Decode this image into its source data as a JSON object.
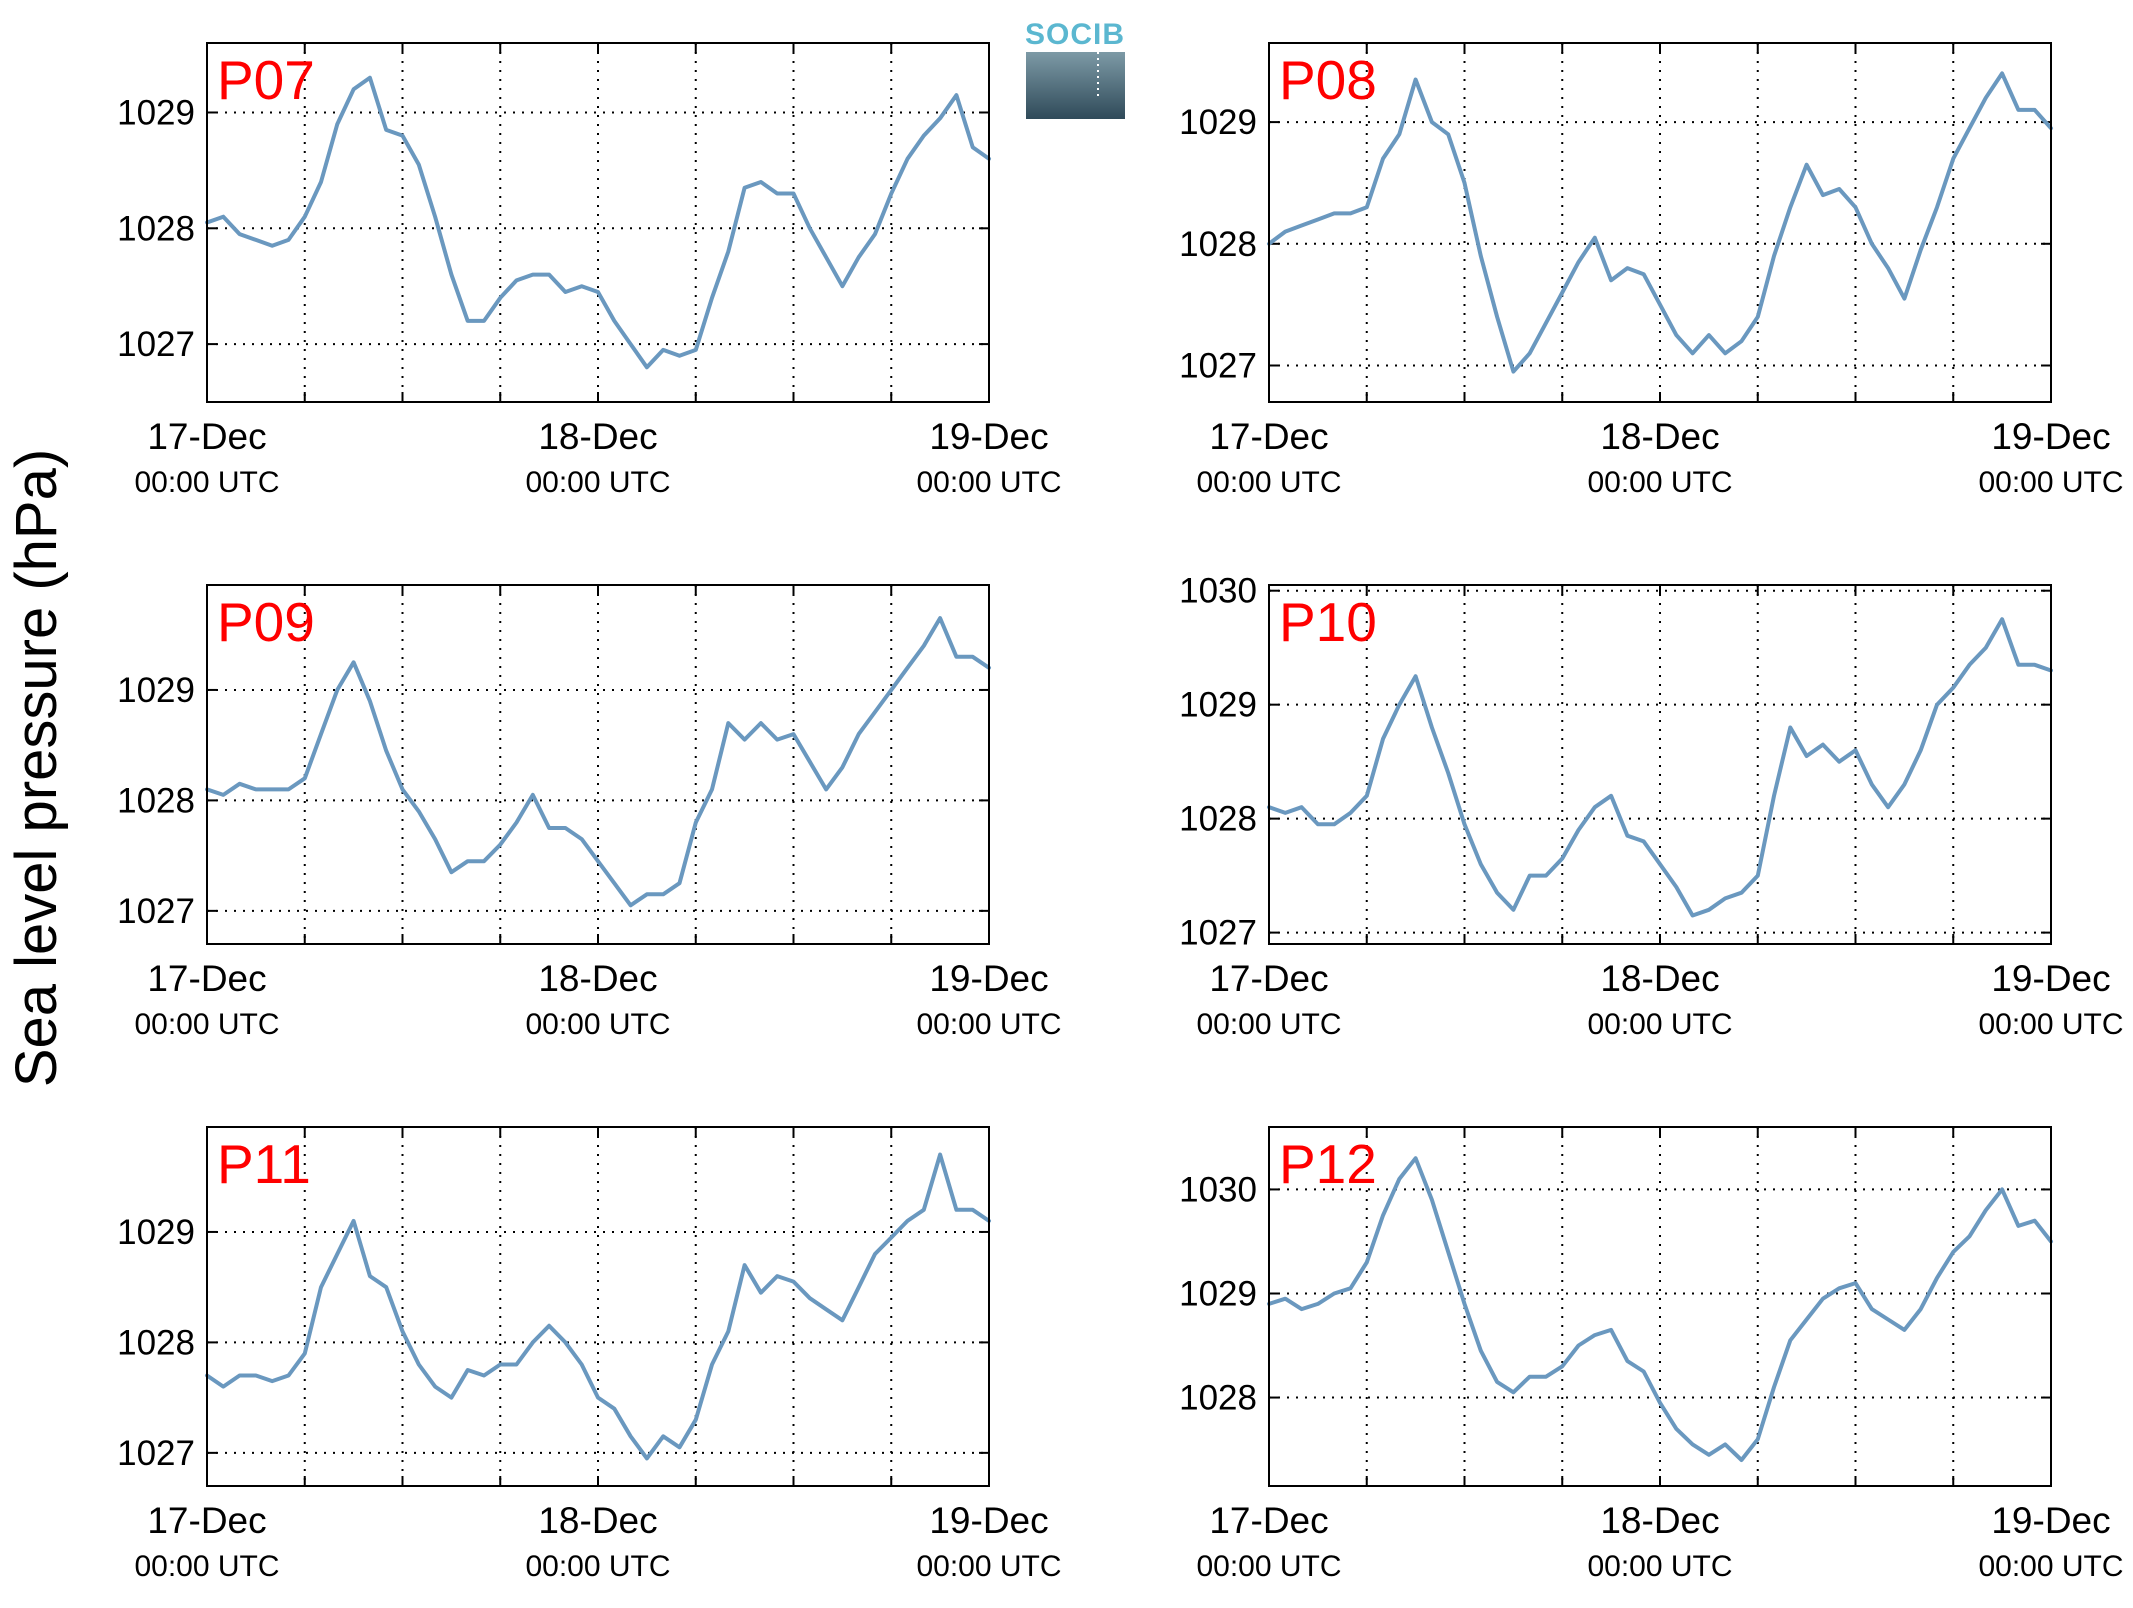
{
  "colors": {
    "series_line": "#6a98bf",
    "panel_title": "#ff0000",
    "logo_text": "#5bb7d0",
    "logo_gradient_top": "#7d9aa6",
    "logo_gradient_bottom": "#2f4a59"
  },
  "logo": {
    "text": "SOCIB"
  },
  "figure": {
    "ylabel": "Sea level pressure (hPa)"
  },
  "chart_data": [
    {
      "type": "line",
      "title": "P07",
      "ylim": [
        1026.5,
        1029.6
      ],
      "yticks": [
        1027,
        1028,
        1029
      ],
      "ytick_labels": [
        "1027",
        "1028",
        "1029"
      ],
      "xlim": [
        0,
        48
      ],
      "xticks": [
        0,
        24,
        48
      ],
      "xtick_labels": [
        {
          "date": "17-Dec",
          "time": "00:00 UTC"
        },
        {
          "date": "18-Dec",
          "time": "00:00 UTC"
        },
        {
          "date": "19-Dec",
          "time": "00:00 UTC"
        }
      ],
      "grid": true,
      "x": [
        0,
        1,
        2,
        3,
        4,
        5,
        6,
        7,
        8,
        9,
        10,
        11,
        12,
        13,
        14,
        15,
        16,
        17,
        18,
        19,
        20,
        21,
        22,
        23,
        24,
        25,
        26,
        27,
        28,
        29,
        30,
        31,
        32,
        33,
        34,
        35,
        36,
        37,
        38,
        39,
        40,
        41,
        42,
        43,
        44,
        45,
        46,
        47,
        48
      ],
      "y": [
        1028.05,
        1028.1,
        1027.95,
        1027.9,
        1027.85,
        1027.9,
        1028.1,
        1028.4,
        1028.9,
        1029.2,
        1029.3,
        1028.85,
        1028.8,
        1028.55,
        1028.1,
        1027.6,
        1027.2,
        1027.2,
        1027.4,
        1027.55,
        1027.6,
        1027.6,
        1027.45,
        1027.5,
        1027.45,
        1027.2,
        1027.0,
        1026.8,
        1026.95,
        1026.9,
        1026.95,
        1027.4,
        1027.8,
        1028.35,
        1028.4,
        1028.3,
        1028.3,
        1028.0,
        1027.75,
        1027.5,
        1027.75,
        1027.95,
        1028.3,
        1028.6,
        1028.8,
        1028.95,
        1029.15,
        1028.7,
        1028.6
      ]
    },
    {
      "type": "line",
      "title": "P08",
      "ylim": [
        1026.7,
        1029.65
      ],
      "yticks": [
        1027,
        1028,
        1029
      ],
      "ytick_labels": [
        "1027",
        "1028",
        "1029"
      ],
      "xlim": [
        0,
        48
      ],
      "xticks": [
        0,
        24,
        48
      ],
      "xtick_labels": [
        {
          "date": "17-Dec",
          "time": "00:00 UTC"
        },
        {
          "date": "18-Dec",
          "time": "00:00 UTC"
        },
        {
          "date": "19-Dec",
          "time": "00:00 UTC"
        }
      ],
      "grid": true,
      "x": [
        0,
        1,
        2,
        3,
        4,
        5,
        6,
        7,
        8,
        9,
        10,
        11,
        12,
        13,
        14,
        15,
        16,
        17,
        18,
        19,
        20,
        21,
        22,
        23,
        24,
        25,
        26,
        27,
        28,
        29,
        30,
        31,
        32,
        33,
        34,
        35,
        36,
        37,
        38,
        39,
        40,
        41,
        42,
        43,
        44,
        45,
        46,
        47,
        48
      ],
      "y": [
        1028.0,
        1028.1,
        1028.15,
        1028.2,
        1028.25,
        1028.25,
        1028.3,
        1028.7,
        1028.9,
        1029.35,
        1029.0,
        1028.9,
        1028.5,
        1027.9,
        1027.4,
        1026.95,
        1027.1,
        1027.35,
        1027.6,
        1027.85,
        1028.05,
        1027.7,
        1027.8,
        1027.75,
        1027.5,
        1027.25,
        1027.1,
        1027.25,
        1027.1,
        1027.2,
        1027.4,
        1027.9,
        1028.3,
        1028.65,
        1028.4,
        1028.45,
        1028.3,
        1028.0,
        1027.8,
        1027.55,
        1027.95,
        1028.3,
        1028.7,
        1028.95,
        1029.2,
        1029.4,
        1029.1,
        1029.1,
        1028.95
      ]
    },
    {
      "type": "line",
      "title": "P09",
      "ylim": [
        1026.7,
        1029.95
      ],
      "yticks": [
        1027,
        1028,
        1029
      ],
      "ytick_labels": [
        "1027",
        "1028",
        "1029"
      ],
      "xlim": [
        0,
        48
      ],
      "xticks": [
        0,
        24,
        48
      ],
      "xtick_labels": [
        {
          "date": "17-Dec",
          "time": "00:00 UTC"
        },
        {
          "date": "18-Dec",
          "time": "00:00 UTC"
        },
        {
          "date": "19-Dec",
          "time": "00:00 UTC"
        }
      ],
      "grid": true,
      "x": [
        0,
        1,
        2,
        3,
        4,
        5,
        6,
        7,
        8,
        9,
        10,
        11,
        12,
        13,
        14,
        15,
        16,
        17,
        18,
        19,
        20,
        21,
        22,
        23,
        24,
        25,
        26,
        27,
        28,
        29,
        30,
        31,
        32,
        33,
        34,
        35,
        36,
        37,
        38,
        39,
        40,
        41,
        42,
        43,
        44,
        45,
        46,
        47,
        48
      ],
      "y": [
        1028.1,
        1028.05,
        1028.15,
        1028.1,
        1028.1,
        1028.1,
        1028.2,
        1028.6,
        1029.0,
        1029.25,
        1028.9,
        1028.45,
        1028.1,
        1027.9,
        1027.65,
        1027.35,
        1027.45,
        1027.45,
        1027.6,
        1027.8,
        1028.05,
        1027.75,
        1027.75,
        1027.65,
        1027.45,
        1027.25,
        1027.05,
        1027.15,
        1027.15,
        1027.25,
        1027.8,
        1028.1,
        1028.7,
        1028.55,
        1028.7,
        1028.55,
        1028.6,
        1028.35,
        1028.1,
        1028.3,
        1028.6,
        1028.8,
        1029.0,
        1029.2,
        1029.4,
        1029.65,
        1029.3,
        1029.3,
        1029.2
      ]
    },
    {
      "type": "line",
      "title": "P10",
      "ylim": [
        1026.9,
        1030.05
      ],
      "yticks": [
        1027,
        1028,
        1029,
        1030
      ],
      "ytick_labels": [
        "1027",
        "1028",
        "1029",
        "1030"
      ],
      "xlim": [
        0,
        48
      ],
      "xticks": [
        0,
        24,
        48
      ],
      "xtick_labels": [
        {
          "date": "17-Dec",
          "time": "00:00 UTC"
        },
        {
          "date": "18-Dec",
          "time": "00:00 UTC"
        },
        {
          "date": "19-Dec",
          "time": "00:00 UTC"
        }
      ],
      "grid": true,
      "x": [
        0,
        1,
        2,
        3,
        4,
        5,
        6,
        7,
        8,
        9,
        10,
        11,
        12,
        13,
        14,
        15,
        16,
        17,
        18,
        19,
        20,
        21,
        22,
        23,
        24,
        25,
        26,
        27,
        28,
        29,
        30,
        31,
        32,
        33,
        34,
        35,
        36,
        37,
        38,
        39,
        40,
        41,
        42,
        43,
        44,
        45,
        46,
        47,
        48
      ],
      "y": [
        1028.1,
        1028.05,
        1028.1,
        1027.95,
        1027.95,
        1028.05,
        1028.2,
        1028.7,
        1029.0,
        1029.25,
        1028.8,
        1028.4,
        1027.95,
        1027.6,
        1027.35,
        1027.2,
        1027.5,
        1027.5,
        1027.65,
        1027.9,
        1028.1,
        1028.2,
        1027.85,
        1027.8,
        1027.6,
        1027.4,
        1027.15,
        1027.2,
        1027.3,
        1027.35,
        1027.5,
        1028.2,
        1028.8,
        1028.55,
        1028.65,
        1028.5,
        1028.6,
        1028.3,
        1028.1,
        1028.3,
        1028.6,
        1029.0,
        1029.15,
        1029.35,
        1029.5,
        1029.75,
        1029.35,
        1029.35,
        1029.3
      ]
    },
    {
      "type": "line",
      "title": "P11",
      "ylim": [
        1026.7,
        1029.95
      ],
      "yticks": [
        1027,
        1028,
        1029
      ],
      "ytick_labels": [
        "1027",
        "1028",
        "1029"
      ],
      "xlim": [
        0,
        48
      ],
      "xticks": [
        0,
        24,
        48
      ],
      "xtick_labels": [
        {
          "date": "17-Dec",
          "time": "00:00 UTC"
        },
        {
          "date": "18-Dec",
          "time": "00:00 UTC"
        },
        {
          "date": "19-Dec",
          "time": "00:00 UTC"
        }
      ],
      "grid": true,
      "x": [
        0,
        1,
        2,
        3,
        4,
        5,
        6,
        7,
        8,
        9,
        10,
        11,
        12,
        13,
        14,
        15,
        16,
        17,
        18,
        19,
        20,
        21,
        22,
        23,
        24,
        25,
        26,
        27,
        28,
        29,
        30,
        31,
        32,
        33,
        34,
        35,
        36,
        37,
        38,
        39,
        40,
        41,
        42,
        43,
        44,
        45,
        46,
        47,
        48
      ],
      "y": [
        1027.7,
        1027.6,
        1027.7,
        1027.7,
        1027.65,
        1027.7,
        1027.9,
        1028.5,
        1028.8,
        1029.1,
        1028.6,
        1028.5,
        1028.1,
        1027.8,
        1027.6,
        1027.5,
        1027.75,
        1027.7,
        1027.8,
        1027.8,
        1028.0,
        1028.15,
        1028.0,
        1027.8,
        1027.5,
        1027.4,
        1027.15,
        1026.95,
        1027.15,
        1027.05,
        1027.3,
        1027.8,
        1028.1,
        1028.7,
        1028.45,
        1028.6,
        1028.55,
        1028.4,
        1028.3,
        1028.2,
        1028.5,
        1028.8,
        1028.95,
        1029.1,
        1029.2,
        1029.7,
        1029.2,
        1029.2,
        1029.1
      ]
    },
    {
      "type": "line",
      "title": "P12",
      "ylim": [
        1027.15,
        1030.6
      ],
      "yticks": [
        1028,
        1029,
        1030
      ],
      "ytick_labels": [
        "1028",
        "1029",
        "1030"
      ],
      "xlim": [
        0,
        48
      ],
      "xticks": [
        0,
        24,
        48
      ],
      "xtick_labels": [
        {
          "date": "17-Dec",
          "time": "00:00 UTC"
        },
        {
          "date": "18-Dec",
          "time": "00:00 UTC"
        },
        {
          "date": "19-Dec",
          "time": "00:00 UTC"
        }
      ],
      "grid": true,
      "x": [
        0,
        1,
        2,
        3,
        4,
        5,
        6,
        7,
        8,
        9,
        10,
        11,
        12,
        13,
        14,
        15,
        16,
        17,
        18,
        19,
        20,
        21,
        22,
        23,
        24,
        25,
        26,
        27,
        28,
        29,
        30,
        31,
        32,
        33,
        34,
        35,
        36,
        37,
        38,
        39,
        40,
        41,
        42,
        43,
        44,
        45,
        46,
        47,
        48
      ],
      "y": [
        1028.9,
        1028.95,
        1028.85,
        1028.9,
        1029.0,
        1029.05,
        1029.3,
        1029.75,
        1030.1,
        1030.3,
        1029.9,
        1029.4,
        1028.9,
        1028.45,
        1028.15,
        1028.05,
        1028.2,
        1028.2,
        1028.3,
        1028.5,
        1028.6,
        1028.65,
        1028.35,
        1028.25,
        1027.95,
        1027.7,
        1027.55,
        1027.45,
        1027.55,
        1027.4,
        1027.6,
        1028.1,
        1028.55,
        1028.75,
        1028.95,
        1029.05,
        1029.1,
        1028.85,
        1028.75,
        1028.65,
        1028.85,
        1029.15,
        1029.4,
        1029.55,
        1029.8,
        1030.0,
        1029.65,
        1029.7,
        1029.5
      ]
    }
  ]
}
